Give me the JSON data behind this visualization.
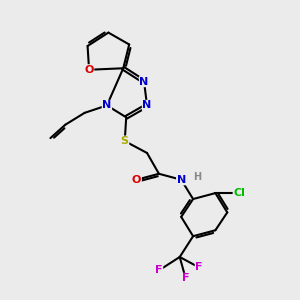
{
  "bg_color": "#ebebeb",
  "figsize": [
    3.0,
    3.0
  ],
  "dpi": 100,
  "colors": {
    "C": "#000000",
    "N": "#0000cc",
    "O": "#dd0000",
    "S": "#aaaa00",
    "Cl": "#00bb00",
    "F": "#cc00cc",
    "H": "#888888"
  }
}
